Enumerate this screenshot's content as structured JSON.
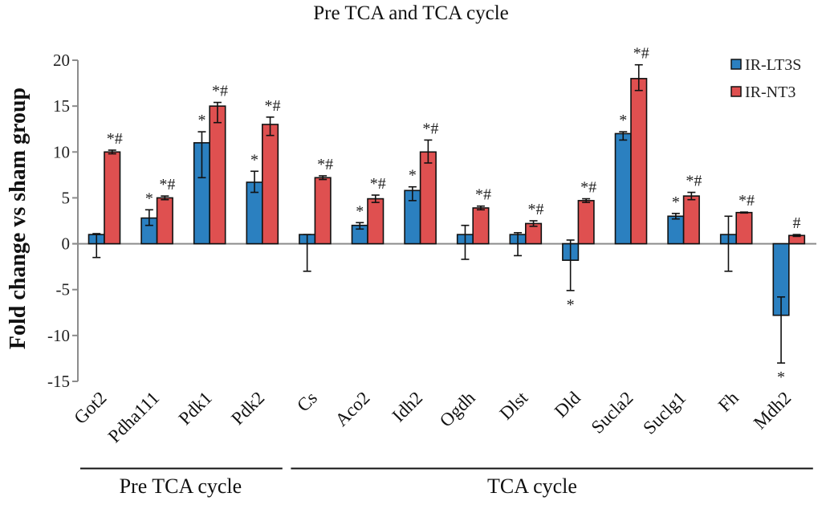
{
  "chart_data": {
    "type": "bar",
    "title": "Pre TCA and TCA cycle",
    "xlabel": "",
    "ylabel": "Fold change vs sham group",
    "ylim": [
      -15,
      20
    ],
    "yticks": [
      20,
      15,
      10,
      5,
      0,
      -5,
      -10,
      -15
    ],
    "grid": false,
    "legend_position": "top-right",
    "categories": [
      "Got2",
      "Pdha1l1",
      "Pdk1",
      "Pdk2",
      "Cs",
      "Aco2",
      "Idh2",
      "Ogdh",
      "Dlst",
      "Dld",
      "Sucla2",
      "Suclg1",
      "Fh",
      "Mdh2"
    ],
    "category_labels": [
      "Got2",
      "Pdha111",
      "Pdk1",
      "Pdk2",
      "Cs",
      "Aco2",
      "Idh2",
      "Ogdh",
      "Dlst",
      "Dld",
      "Sucla2",
      "Suclg1",
      "Fh",
      "Mdh2"
    ],
    "series": [
      {
        "name": "IR-LT3S",
        "color": "#2b80c0",
        "values": [
          1.0,
          2.8,
          11.0,
          6.7,
          1.0,
          2.0,
          5.8,
          1.0,
          1.0,
          -1.8,
          12.0,
          3.0,
          1.0,
          -7.8
        ],
        "error_low": [
          -1.5,
          2.0,
          7.2,
          5.6,
          -3.0,
          1.6,
          4.7,
          -1.7,
          -1.3,
          -5.1,
          11.3,
          2.7,
          -3.0,
          -13.0
        ],
        "error_high": [
          1.1,
          3.7,
          12.2,
          7.9,
          1.0,
          2.3,
          6.2,
          2.0,
          1.2,
          0.4,
          12.2,
          3.3,
          3.0,
          -5.8
        ],
        "annotations": [
          "",
          "*",
          "*",
          "*",
          "",
          "*",
          "*",
          "",
          "",
          "*",
          "*",
          "*",
          "",
          "*"
        ]
      },
      {
        "name": "IR-NT3",
        "color": "#df5050",
        "values": [
          10.0,
          5.0,
          15.0,
          13.0,
          7.2,
          4.9,
          10.0,
          3.9,
          2.2,
          4.7,
          18.0,
          5.2,
          3.4,
          0.9
        ],
        "error_low": [
          9.8,
          4.8,
          13.2,
          11.8,
          7.0,
          4.5,
          8.8,
          3.7,
          1.9,
          4.5,
          16.7,
          4.8,
          3.35,
          0.8
        ],
        "error_high": [
          10.2,
          5.2,
          15.4,
          13.8,
          7.4,
          5.3,
          11.3,
          4.1,
          2.5,
          4.9,
          19.5,
          5.6,
          3.45,
          1.0
        ],
        "annotations": [
          "*#",
          "*#",
          "*#",
          "*#",
          "*#",
          "*#",
          "*#",
          "*#",
          "*#",
          "*#",
          "*#",
          "*#",
          "*#",
          "#"
        ]
      }
    ],
    "groups": [
      {
        "label": "Pre TCA cycle",
        "categories": [
          "Got2",
          "Pdha1l1",
          "Pdk1",
          "Pdk2"
        ]
      },
      {
        "label": "TCA cycle",
        "categories": [
          "Cs",
          "Aco2",
          "Idh2",
          "Ogdh",
          "Dlst",
          "Dld",
          "Sucla2",
          "Suclg1",
          "Fh",
          "Mdh2"
        ]
      }
    ]
  }
}
